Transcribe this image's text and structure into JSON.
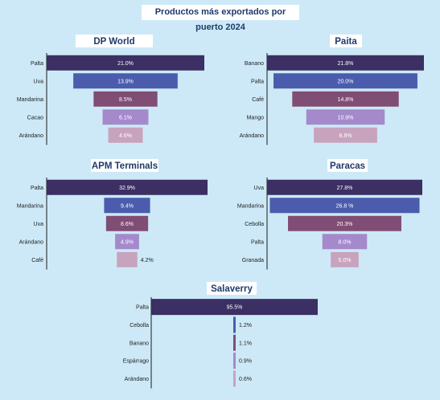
{
  "title": "Productos más exportados por puerto 2024",
  "colors": [
    "#3b2f63",
    "#4b5cad",
    "#804d74",
    "#a48acb",
    "#c8a3bd"
  ],
  "chart_data": [
    {
      "type": "bar",
      "title": "DP World",
      "categories": [
        "Palta",
        "Uva",
        "Mandarina",
        "Cacao",
        "Arándano"
      ],
      "values": [
        21.0,
        13.9,
        8.5,
        6.1,
        4.6
      ],
      "labels": [
        "21.0%",
        "13.9%",
        "8.5%",
        "6.1%",
        "4.6%"
      ]
    },
    {
      "type": "bar",
      "title": "Paita",
      "categories": [
        "Banano",
        "Palta",
        "Café",
        "Mango",
        "Arándano"
      ],
      "values": [
        21.8,
        20.0,
        14.8,
        10.9,
        8.8
      ],
      "labels": [
        "21.8%",
        "20.0%",
        "14.8%",
        "10.9%",
        "8.8%"
      ]
    },
    {
      "type": "bar",
      "title": "APM Terminals",
      "categories": [
        "Palta",
        "Mandarina",
        "Uva",
        "Arándano",
        "Café"
      ],
      "values": [
        32.9,
        9.4,
        8.6,
        4.9,
        4.2
      ],
      "labels": [
        "32.9%",
        "9.4%",
        "8.6%",
        "4.9%",
        "4.2%"
      ]
    },
    {
      "type": "bar",
      "title": "Paracas",
      "categories": [
        "Uva",
        "Mandarina",
        "Cebolla",
        "Palta",
        "Granada"
      ],
      "values": [
        27.8,
        26.8,
        20.3,
        8.0,
        5.0
      ],
      "labels": [
        "27.8%",
        "26.8 %",
        "20.3%",
        "8.0%",
        "5.0%"
      ]
    },
    {
      "type": "bar",
      "title": "Salaverry",
      "categories": [
        "Palta",
        "Cebolla",
        "Banano",
        "Espárrago",
        "Arándano"
      ],
      "values": [
        95.5,
        1.2,
        1.1,
        0.9,
        0.6
      ],
      "labels": [
        "95.5%",
        "1.2%",
        "1.1%",
        "0.9%",
        "0.6%"
      ]
    }
  ]
}
